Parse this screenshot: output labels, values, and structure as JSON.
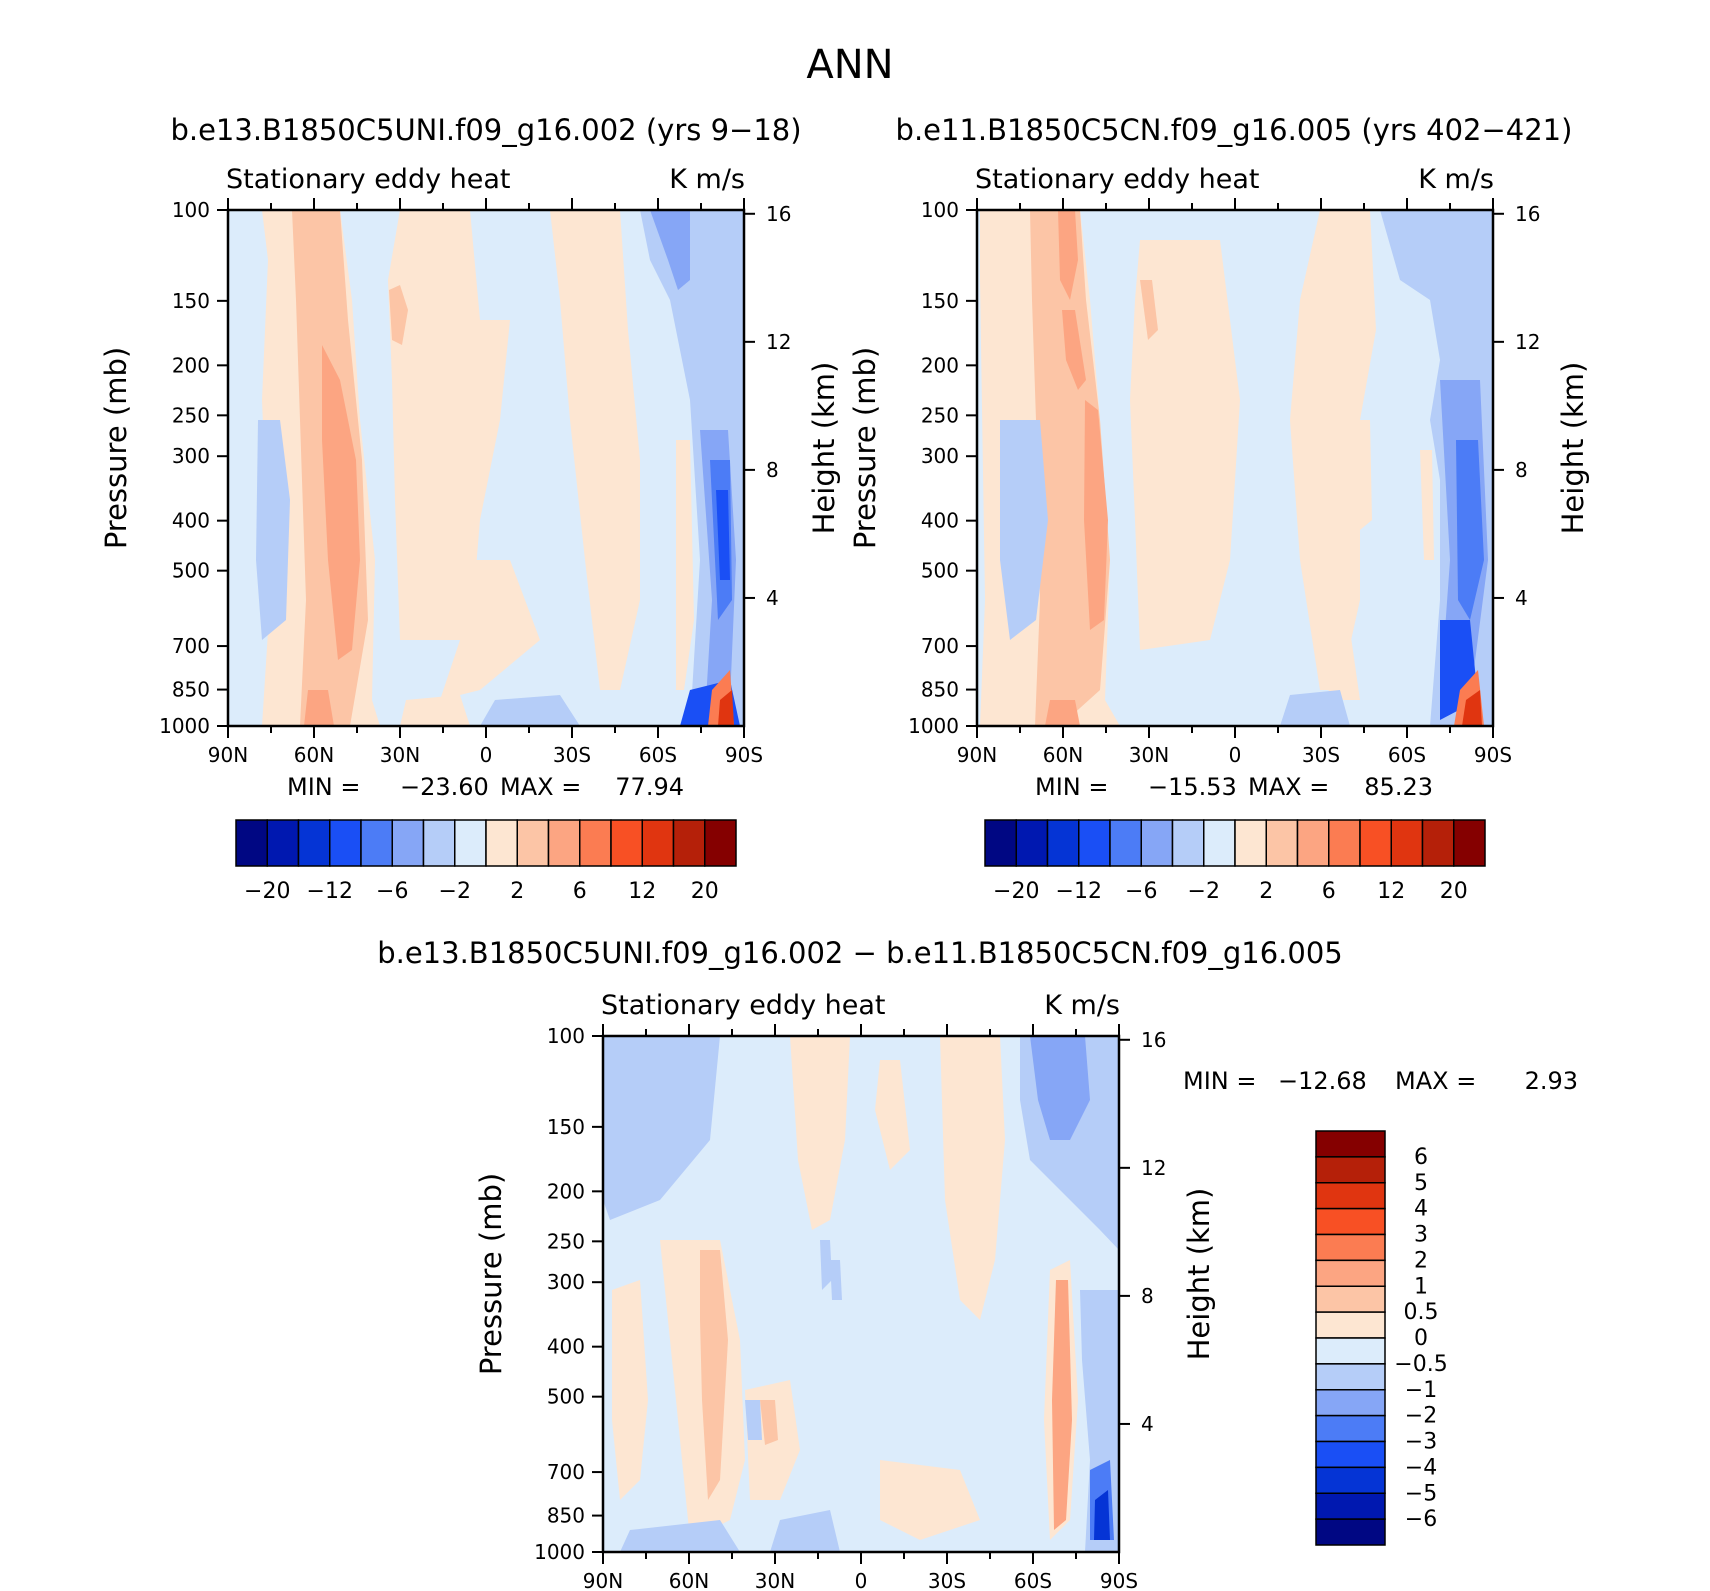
{
  "chart_data": {
    "type": "contour",
    "title": "ANN",
    "y_ticks_pressure": [
      "100",
      "150",
      "200",
      "250",
      "300",
      "400",
      "500",
      "700",
      "850",
      "1000"
    ],
    "y_ticks_pressure_values": [
      100,
      150,
      200,
      250,
      300,
      400,
      500,
      700,
      850,
      1000
    ],
    "y_ticks_height": [
      "16",
      "12",
      "8",
      "4"
    ],
    "y_ticks_height_values": [
      16,
      12,
      8,
      4
    ],
    "x_ticks": [
      "90N",
      "60N",
      "30N",
      "0",
      "30S",
      "60S",
      "90S"
    ],
    "x_tick_values": [
      90,
      60,
      30,
      0,
      -30,
      -60,
      -90
    ],
    "xlim": [
      90,
      -90
    ],
    "ylim_pressure": [
      1000,
      100
    ],
    "ylabel_left": "Pressure (mb)",
    "ylabel_right": "Height (km)",
    "panels": [
      {
        "id": "case",
        "title": "b.e13.B1850C5UNI.f09_g16.002 (yrs 9-18)",
        "variable": "Stationary eddy heat",
        "units": "K m/s",
        "min_label": "MIN =",
        "min": "-23.60",
        "max_label": "MAX =",
        "max": "77.94",
        "colorbar_labels": [
          "-20",
          "-12",
          "-6",
          "-2",
          "2",
          "6",
          "12",
          "20"
        ],
        "colorbar_levels": [
          -20,
          -16,
          -12,
          -8,
          -6,
          -4,
          -2,
          0,
          2,
          4,
          6,
          8,
          12,
          16,
          20
        ]
      },
      {
        "id": "control",
        "title": "b.e11.B1850C5CN.f09_g16.005 (yrs 402-421)",
        "variable": "Stationary eddy heat",
        "units": "K m/s",
        "min_label": "MIN =",
        "min": "-15.53",
        "max_label": "MAX =",
        "max": "85.23",
        "colorbar_labels": [
          "-20",
          "-12",
          "-6",
          "-2",
          "2",
          "6",
          "12",
          "20"
        ],
        "colorbar_levels": [
          -20,
          -16,
          -12,
          -8,
          -6,
          -4,
          -2,
          0,
          2,
          4,
          6,
          8,
          12,
          16,
          20
        ]
      },
      {
        "id": "difference",
        "title": "b.e13.B1850C5UNI.f09_g16.002 - b.e11.B1850C5CN.f09_g16.005",
        "variable": "Stationary eddy heat",
        "units": "K m/s",
        "min_label": "MIN =",
        "min": "-12.68",
        "max_label": "MAX =",
        "max": "2.93",
        "colorbar_labels": [
          "6",
          "5",
          "4",
          "3",
          "2",
          "1",
          "0.5",
          "0",
          "-0.5",
          "-1",
          "-2",
          "-3",
          "-4",
          "-5",
          "-6"
        ],
        "colorbar_levels": [
          6,
          5,
          4,
          3,
          2,
          1,
          0.5,
          0,
          -0.5,
          -1,
          -2,
          -3,
          -4,
          -5,
          -6
        ]
      }
    ],
    "colors": {
      "horizontal_bar": [
        "#000783",
        "#0018b0",
        "#0534d5",
        "#1a4ff5",
        "#4c7cf6",
        "#86a6f6",
        "#b5cdf8",
        "#dcecfb",
        "#fde6d2",
        "#fcc5a6",
        "#fca582",
        "#fb7c52",
        "#f85024",
        "#e03510",
        "#b52009",
        "#850000"
      ],
      "vertical_bar": [
        "#850000",
        "#b52009",
        "#e03510",
        "#f85024",
        "#fb7c52",
        "#fca582",
        "#fcc5a6",
        "#fde6d2",
        "#dcecfb",
        "#b5cdf8",
        "#86a6f6",
        "#4c7cf6",
        "#1a4ff5",
        "#0534d5",
        "#0018b0",
        "#000783"
      ]
    }
  }
}
